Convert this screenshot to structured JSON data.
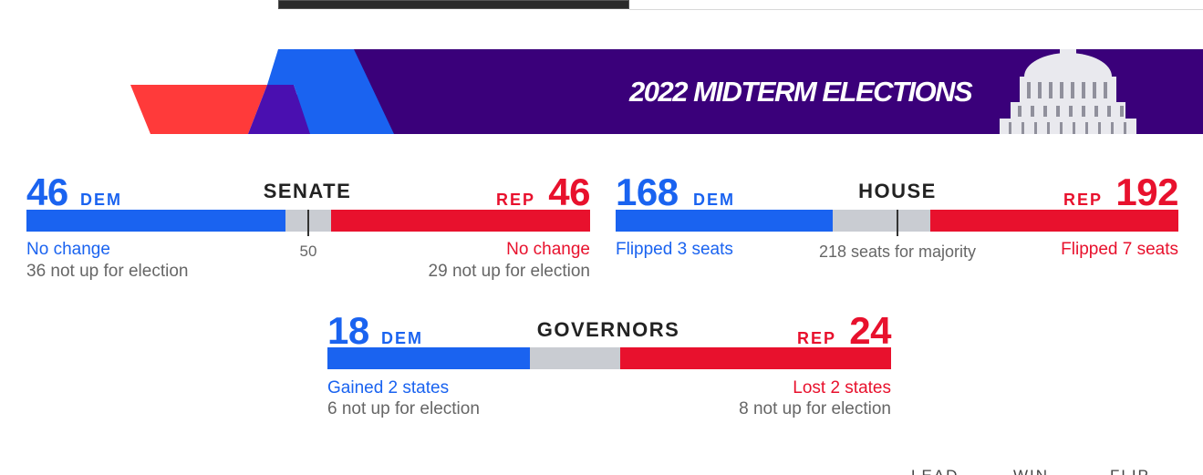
{
  "banner": {
    "title": "2022 MIDTERM ELECTIONS",
    "colors": {
      "purple": "#3a007a",
      "red": "#ff3a3a",
      "blue": "#1a63f0"
    }
  },
  "colors": {
    "dem": "#1a63f0",
    "rep": "#e8112d",
    "uncalled": "#c9ccd2"
  },
  "senate": {
    "title": "SENATE",
    "dem": {
      "count": "46",
      "label": "DEM",
      "status": "No change",
      "not_up": "36 not up for election"
    },
    "rep": {
      "count": "46",
      "label": "REP",
      "status": "No change",
      "not_up": "29 not up for election"
    },
    "majority_label": "50",
    "total_seats": 100,
    "majority": 50
  },
  "house": {
    "title": "HOUSE",
    "dem": {
      "count": "168",
      "label": "DEM",
      "status": "Flipped 3 seats"
    },
    "rep": {
      "count": "192",
      "label": "REP",
      "status": "Flipped 7 seats"
    },
    "majority_label": "218 seats for majority",
    "total_seats": 435,
    "majority": 218
  },
  "governors": {
    "title": "GOVERNORS",
    "dem": {
      "count": "18",
      "label": "DEM",
      "status": "Gained 2 states",
      "not_up": "6 not up for election"
    },
    "rep": {
      "count": "24",
      "label": "REP",
      "status": "Lost 2 states",
      "not_up": "8 not up for election"
    },
    "total_seats": 50
  },
  "footer": {
    "col1": "LEAD",
    "col2": "WIN",
    "col3": "FLIP"
  }
}
